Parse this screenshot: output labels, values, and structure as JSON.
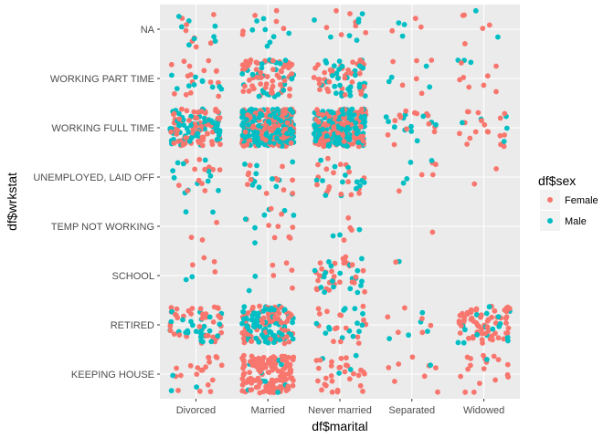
{
  "chart_data": {
    "type": "scatter",
    "jitter": true,
    "xlabel": "df$marital",
    "ylabel": "df$wrkstat",
    "x_categories": [
      "Divorced",
      "Married",
      "Never married",
      "Separated",
      "Widowed"
    ],
    "y_categories": [
      "KEEPING HOUSE",
      "RETIRED",
      "SCHOOL",
      "TEMP NOT WORKING",
      "UNEMPLOYED, LAID OFF",
      "WORKING FULL TIME",
      "WORKING PART TIME",
      "NA"
    ],
    "legend": {
      "title": "df$sex",
      "position": "right",
      "entries": [
        {
          "name": "Female",
          "color": "#F8766D"
        },
        {
          "name": "Male",
          "color": "#00BFC4"
        }
      ]
    },
    "grid": true,
    "series": [
      {
        "name": "Female",
        "color": "#F8766D"
      },
      {
        "name": "Male",
        "color": "#00BFC4"
      }
    ],
    "cells": [
      {
        "x": "Divorced",
        "y": "NA",
        "Female": 8,
        "Male": 8
      },
      {
        "x": "Married",
        "y": "NA",
        "Female": 6,
        "Male": 8
      },
      {
        "x": "Never married",
        "y": "NA",
        "Female": 7,
        "Male": 7
      },
      {
        "x": "Separated",
        "y": "NA",
        "Female": 3,
        "Male": 3
      },
      {
        "x": "Widowed",
        "y": "NA",
        "Female": 5,
        "Male": 2
      },
      {
        "x": "Divorced",
        "y": "WORKING PART TIME",
        "Female": 16,
        "Male": 10
      },
      {
        "x": "Married",
        "y": "WORKING PART TIME",
        "Female": 60,
        "Male": 30
      },
      {
        "x": "Never married",
        "y": "WORKING PART TIME",
        "Female": 40,
        "Male": 35
      },
      {
        "x": "Separated",
        "y": "WORKING PART TIME",
        "Female": 6,
        "Male": 4
      },
      {
        "x": "Widowed",
        "y": "WORKING PART TIME",
        "Female": 8,
        "Male": 3
      },
      {
        "x": "Divorced",
        "y": "WORKING FULL TIME",
        "Female": 70,
        "Male": 70
      },
      {
        "x": "Married",
        "y": "WORKING FULL TIME",
        "Female": 160,
        "Male": 200
      },
      {
        "x": "Never married",
        "y": "WORKING FULL TIME",
        "Female": 130,
        "Male": 150
      },
      {
        "x": "Separated",
        "y": "WORKING FULL TIME",
        "Female": 14,
        "Male": 12
      },
      {
        "x": "Widowed",
        "y": "WORKING FULL TIME",
        "Female": 18,
        "Male": 5
      },
      {
        "x": "Divorced",
        "y": "UNEMPLOYED, LAID OFF",
        "Female": 12,
        "Male": 12
      },
      {
        "x": "Married",
        "y": "UNEMPLOYED, LAID OFF",
        "Female": 12,
        "Male": 12
      },
      {
        "x": "Never married",
        "y": "UNEMPLOYED, LAID OFF",
        "Female": 18,
        "Male": 14
      },
      {
        "x": "Separated",
        "y": "UNEMPLOYED, LAID OFF",
        "Female": 5,
        "Male": 4
      },
      {
        "x": "Widowed",
        "y": "UNEMPLOYED, LAID OFF",
        "Female": 2,
        "Male": 0
      },
      {
        "x": "Divorced",
        "y": "TEMP NOT WORKING",
        "Female": 3,
        "Male": 2
      },
      {
        "x": "Married",
        "y": "TEMP NOT WORKING",
        "Female": 9,
        "Male": 7
      },
      {
        "x": "Never married",
        "y": "TEMP NOT WORKING",
        "Female": 4,
        "Male": 3
      },
      {
        "x": "Separated",
        "y": "TEMP NOT WORKING",
        "Female": 1,
        "Male": 0
      },
      {
        "x": "Widowed",
        "y": "TEMP NOT WORKING",
        "Female": 0,
        "Male": 0
      },
      {
        "x": "Divorced",
        "y": "SCHOOL",
        "Female": 4,
        "Male": 2
      },
      {
        "x": "Married",
        "y": "SCHOOL",
        "Female": 5,
        "Male": 2
      },
      {
        "x": "Never married",
        "y": "SCHOOL",
        "Female": 30,
        "Male": 22
      },
      {
        "x": "Separated",
        "y": "SCHOOL",
        "Female": 1,
        "Male": 1
      },
      {
        "x": "Widowed",
        "y": "SCHOOL",
        "Female": 0,
        "Male": 0
      },
      {
        "x": "Divorced",
        "y": "RETIRED",
        "Female": 40,
        "Male": 28
      },
      {
        "x": "Married",
        "y": "RETIRED",
        "Female": 70,
        "Male": 90
      },
      {
        "x": "Never married",
        "y": "RETIRED",
        "Female": 16,
        "Male": 14
      },
      {
        "x": "Separated",
        "y": "RETIRED",
        "Female": 6,
        "Male": 5
      },
      {
        "x": "Widowed",
        "y": "RETIRED",
        "Female": 60,
        "Male": 18
      },
      {
        "x": "Divorced",
        "y": "KEEPING HOUSE",
        "Female": 20,
        "Male": 3
      },
      {
        "x": "Married",
        "y": "KEEPING HOUSE",
        "Female": 140,
        "Male": 10
      },
      {
        "x": "Never married",
        "y": "KEEPING HOUSE",
        "Female": 30,
        "Male": 4
      },
      {
        "x": "Separated",
        "y": "KEEPING HOUSE",
        "Female": 8,
        "Male": 1
      },
      {
        "x": "Widowed",
        "y": "KEEPING HOUSE",
        "Female": 18,
        "Male": 1
      }
    ]
  }
}
